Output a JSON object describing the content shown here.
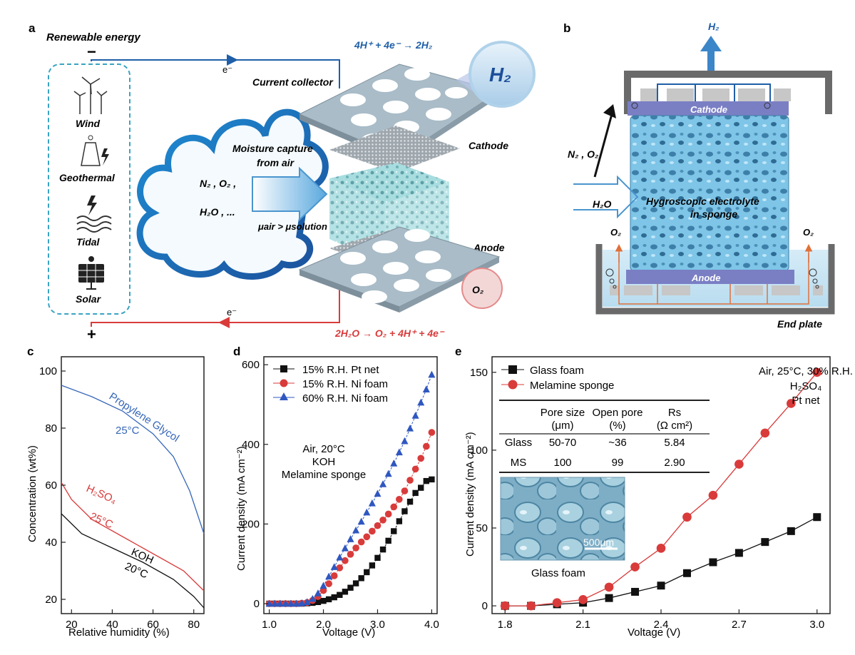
{
  "colors": {
    "blue": "#1f5fa8",
    "red": "#d93b3b",
    "navy": "#1a3c8c",
    "black": "#111111",
    "sponge": "#7ec8e8",
    "plate": "#a9bcc8"
  },
  "panel_a": {
    "letter": "a",
    "renewable": "Renewable energy",
    "minus": "−",
    "plus": "+",
    "eminus": "e⁻",
    "sources": [
      "Wind",
      "Geothermal",
      "Tidal",
      "Solar"
    ],
    "cathode_eq": "4H⁺ + 4e⁻ → 2H₂",
    "anode_eq": "2H₂O → O₂ + 4H⁺ + 4e⁻",
    "current_collector": "Current collector",
    "cathode": "Cathode",
    "anode": "Anode",
    "moisture_l1": "Moisture capture",
    "moisture_l2": "from air",
    "gases_l1": "N₂ , O₂ ,",
    "gases_l2": "H₂O , ...",
    "mu": "μair > μsolution",
    "h2": "H₂",
    "o2": "O₂"
  },
  "panel_b": {
    "letter": "b",
    "h2": "H₂",
    "n2o2": "N₂ , O₂",
    "h2o": "H₂O",
    "cathode": "Cathode",
    "anode": "Anode",
    "electrolyte_l1": "Hygroscopic electrolyte",
    "electrolyte_l2": "in sponge",
    "o2_left": "O₂",
    "o2_right": "O₂",
    "end_plate": "End plate"
  },
  "chart_data": [
    {
      "panel": "c",
      "type": "line",
      "xlabel": "Relative humidity (%)",
      "ylabel": "Concentration (wt%)",
      "xlim": [
        15,
        85
      ],
      "ylim": [
        15,
        105
      ],
      "xticks": [
        20,
        40,
        60,
        80
      ],
      "yticks": [
        20,
        40,
        60,
        80,
        100
      ],
      "series": [
        {
          "name": "Propylene Glycol",
          "label_l1": "Propylene Glycol",
          "label_l2": "25°C",
          "color": "#3566b8",
          "x": [
            15,
            30,
            45,
            60,
            70,
            78,
            85
          ],
          "y": [
            95,
            91,
            86,
            78,
            70,
            58,
            43
          ]
        },
        {
          "name": "H₂SO₄",
          "label_l1": "H₂SO₄",
          "label_l2": "25°C",
          "color": "#d93b3b",
          "x": [
            15,
            20,
            30,
            45,
            60,
            75,
            85
          ],
          "y": [
            61,
            55,
            48,
            42,
            36,
            30,
            23
          ]
        },
        {
          "name": "KOH",
          "label_l1": "KOH",
          "label_l2": "20°C",
          "color": "#111111",
          "x": [
            15,
            25,
            40,
            55,
            70,
            80,
            85
          ],
          "y": [
            50,
            43,
            38,
            33,
            27,
            21,
            17
          ]
        }
      ]
    },
    {
      "panel": "d",
      "type": "scatter",
      "xlabel": "Voltage (V)",
      "ylabel": "Current density (mA cm⁻²)",
      "xlim": [
        0.9,
        4.1
      ],
      "ylim": [
        -25,
        620
      ],
      "xticks": [
        "1.0",
        "2.0",
        "3.0",
        "4.0"
      ],
      "yticks": [
        "0",
        "200",
        "400",
        "600"
      ],
      "annotation": [
        "Air, 20°C",
        "KOH",
        "Melamine sponge"
      ],
      "series": [
        {
          "name": "15% R.H. Pt net",
          "marker": "square",
          "color": "#111111",
          "x": [
            1.0,
            1.1,
            1.2,
            1.3,
            1.4,
            1.5,
            1.6,
            1.7,
            1.8,
            1.9,
            2.0,
            2.1,
            2.2,
            2.3,
            2.4,
            2.5,
            2.6,
            2.7,
            2.8,
            2.9,
            3.0,
            3.1,
            3.2,
            3.3,
            3.4,
            3.5,
            3.6,
            3.7,
            3.8,
            3.9,
            4.0
          ],
          "y": [
            0,
            0,
            0,
            0,
            0,
            0,
            0,
            1,
            2,
            4,
            7,
            11,
            16,
            22,
            30,
            40,
            51,
            64,
            79,
            96,
            115,
            136,
            158,
            182,
            207,
            232,
            256,
            278,
            291,
            308,
            312
          ]
        },
        {
          "name": "15% R.H. Ni foam",
          "marker": "circle",
          "color": "#d93b3b",
          "x": [
            1.0,
            1.1,
            1.2,
            1.3,
            1.4,
            1.5,
            1.6,
            1.7,
            1.8,
            1.9,
            2.0,
            2.1,
            2.2,
            2.3,
            2.4,
            2.5,
            2.6,
            2.7,
            2.8,
            2.9,
            3.0,
            3.1,
            3.2,
            3.3,
            3.4,
            3.5,
            3.6,
            3.7,
            3.8,
            3.9,
            4.0
          ],
          "y": [
            0,
            0,
            0,
            0,
            0,
            0,
            1,
            3,
            8,
            18,
            33,
            50,
            70,
            90,
            108,
            124,
            140,
            155,
            168,
            182,
            196,
            210,
            225,
            243,
            262,
            283,
            310,
            338,
            365,
            395,
            430
          ]
        },
        {
          "name": "60% R.H. Ni foam",
          "marker": "triangle",
          "color": "#2f57c0",
          "x": [
            1.0,
            1.1,
            1.2,
            1.3,
            1.4,
            1.5,
            1.6,
            1.7,
            1.8,
            1.9,
            2.0,
            2.1,
            2.2,
            2.3,
            2.4,
            2.5,
            2.6,
            2.7,
            2.8,
            2.9,
            3.0,
            3.1,
            3.2,
            3.3,
            3.4,
            3.5,
            3.6,
            3.7,
            3.8,
            3.9,
            4.0
          ],
          "y": [
            0,
            0,
            0,
            0,
            0,
            0,
            1,
            4,
            12,
            26,
            45,
            68,
            92,
            116,
            139,
            162,
            184,
            206,
            229,
            252,
            276,
            300,
            326,
            352,
            380,
            408,
            440,
            472,
            505,
            538,
            575
          ]
        }
      ]
    },
    {
      "panel": "e",
      "type": "scatter",
      "xlabel": "Voltage (V)",
      "ylabel": "Current density (mA cm⁻²)",
      "xlim": [
        1.75,
        3.05
      ],
      "ylim": [
        -5,
        160
      ],
      "xticks": [
        "1.8",
        "2.1",
        "2.4",
        "2.7",
        "3.0"
      ],
      "yticks": [
        "0",
        "50",
        "100",
        "150"
      ],
      "annotation": [
        "Air, 25°C, 30% R.H.",
        "H₂SO₄",
        "Pt net"
      ],
      "series": [
        {
          "name": "Glass foam",
          "marker": "square",
          "color": "#111111",
          "x": [
            1.8,
            1.9,
            2.0,
            2.1,
            2.2,
            2.3,
            2.4,
            2.5,
            2.6,
            2.7,
            2.8,
            2.9,
            3.0
          ],
          "y": [
            0,
            0,
            1,
            2,
            5,
            9,
            13,
            21,
            28,
            34,
            41,
            48,
            57
          ]
        },
        {
          "name": "Melamine sponge",
          "marker": "circle",
          "color": "#d93b3b",
          "x": [
            1.8,
            1.9,
            2.0,
            2.1,
            2.2,
            2.3,
            2.4,
            2.5,
            2.6,
            2.7,
            2.8,
            2.9,
            3.0
          ],
          "y": [
            0,
            0,
            2,
            4,
            12,
            25,
            37,
            57,
            71,
            91,
            111,
            130,
            150
          ]
        }
      ],
      "table": {
        "headers": [
          [
            "",
            "Pore size",
            "Open pore",
            "Rs"
          ],
          [
            "",
            "(μm)",
            "(%)",
            "(Ω cm²)"
          ]
        ],
        "rows": [
          [
            "Glass",
            "50-70",
            "~36",
            "5.84"
          ],
          [
            "MS",
            "100",
            "99",
            "2.90"
          ]
        ]
      },
      "inset_caption": "Glass foam",
      "scale_bar": "500μm"
    }
  ]
}
